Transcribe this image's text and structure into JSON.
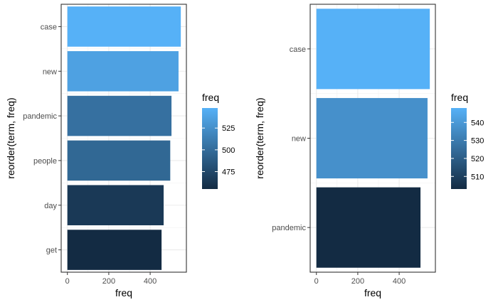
{
  "chart_data": [
    {
      "type": "bar",
      "orientation": "horizontal",
      "xlabel": "freq",
      "ylabel": "reorder(term, freq)",
      "categories": [
        "case",
        "new",
        "pandemic",
        "people",
        "day",
        "get"
      ],
      "values": [
        548,
        537,
        503,
        497,
        465,
        455
      ],
      "xlim": [
        -30,
        575
      ],
      "xticks": [
        0,
        200,
        400
      ],
      "grid": true,
      "legend": {
        "title": "freq",
        "placement": "right",
        "range": [
          455,
          548
        ],
        "ticks": [
          475,
          500,
          525
        ],
        "low_color": "#132b43",
        "high_color": "#56b1f7"
      }
    },
    {
      "type": "bar",
      "orientation": "horizontal",
      "xlabel": "freq",
      "ylabel": "reorder(term, freq)",
      "categories": [
        "case",
        "new",
        "pandemic"
      ],
      "values": [
        548,
        537,
        503
      ],
      "xlim": [
        -30,
        575
      ],
      "xticks": [
        0,
        200,
        400
      ],
      "grid": true,
      "legend": {
        "title": "freq",
        "placement": "right",
        "range": [
          503,
          548
        ],
        "ticks": [
          510,
          520,
          530,
          540
        ],
        "low_color": "#132b43",
        "high_color": "#56b1f7"
      }
    }
  ]
}
